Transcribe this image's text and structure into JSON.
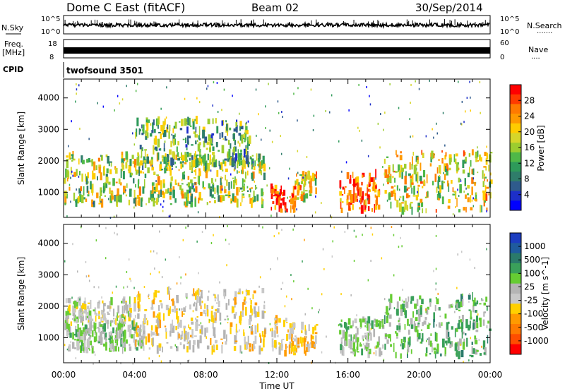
{
  "header": {
    "station": "Dome C East (fitACF)",
    "beam": "Beam 02",
    "date": "30/Sep/2014"
  },
  "top_strips": {
    "nsky_label": "N.Sky",
    "nsky_ticks": [
      "10^5",
      "10^0"
    ],
    "nsky_right_ticks": [
      "10^5",
      "10^0"
    ],
    "nsearch_label": "N.Search",
    "nsearch_dots": "·······",
    "freq_label_1": "Freq.",
    "freq_label_2": "[MHz]",
    "freq_left_ticks": [
      "18",
      "8"
    ],
    "freq_right_ticks": [
      "60",
      "0"
    ],
    "nave_label": "Nave",
    "nave_dots": "····",
    "cpid_label": "CPID",
    "cpid_value": "twofsound 3501"
  },
  "colorbar_power": {
    "label": "Power [dB]",
    "ticks": [
      "28",
      "24",
      "20",
      "16",
      "12",
      "8",
      "4"
    ],
    "colors": [
      "#ff0000",
      "#ff3a00",
      "#ff7a00",
      "#ff9a00",
      "#ffcc00",
      "#d6d62a",
      "#9ccd2f",
      "#4fb848",
      "#2e9a5a",
      "#2f7d6a",
      "#2f5b8c",
      "#1d2fc9",
      "#0000ff"
    ]
  },
  "colorbar_velocity": {
    "label": "Velocity [m s^-1]",
    "ticks": [
      "1000",
      "500",
      "100",
      "25",
      "-25",
      "-100",
      "-500",
      "-1000"
    ],
    "colors": [
      "#1c3dc0",
      "#1f5b9e",
      "#2a7a6a",
      "#3aa05a",
      "#66cc33",
      "#b4b4b4",
      "#c8c8c8",
      "#ffd000",
      "#ff9a00",
      "#ff7a00",
      "#ff4d00",
      "#ff0000"
    ]
  },
  "chart_data": [
    {
      "type": "heatmap",
      "name_ref": "power",
      "xlabel": "",
      "ylabel": "Slant Range [km]",
      "y_ticks": [
        1000,
        2000,
        3000,
        4000
      ],
      "ylim": [
        200,
        4600
      ],
      "xlim_hours": [
        0,
        24
      ],
      "colorbar": "Power [dB]",
      "clim": [
        0,
        30
      ],
      "echo_regions": [
        {
          "t0": 0.0,
          "t1": 11.3,
          "r0": 600,
          "r1": 2200,
          "value": 16
        },
        {
          "t0": 4.0,
          "t1": 10.5,
          "r0": 1800,
          "r1": 3300,
          "value": 12
        },
        {
          "t0": 11.6,
          "t1": 13.0,
          "r0": 400,
          "r1": 1200,
          "value": 26
        },
        {
          "t0": 13.0,
          "t1": 14.2,
          "r0": 800,
          "r1": 1600,
          "value": 18
        },
        {
          "t0": 15.5,
          "t1": 17.8,
          "r0": 400,
          "r1": 1600,
          "value": 26
        },
        {
          "t0": 18.0,
          "t1": 24.0,
          "r0": 400,
          "r1": 2300,
          "value": 18
        }
      ]
    },
    {
      "type": "heatmap",
      "name_ref": "velocity",
      "xlabel": "Time UT",
      "ylabel": "Slant Range [km]",
      "x_ticks": [
        "00:00",
        "04:00",
        "08:00",
        "12:00",
        "16:00",
        "20:00",
        "00:00"
      ],
      "y_ticks": [
        1000,
        2000,
        3000,
        4000
      ],
      "ylim": [
        200,
        4600
      ],
      "xlim_hours": [
        0,
        24
      ],
      "colorbar": "Velocity [m s^-1]",
      "clim": [
        -1000,
        1000
      ],
      "echo_regions": [
        {
          "t0": 0.0,
          "t1": 4.0,
          "r0": 1400,
          "r1": 2200,
          "value": 0
        },
        {
          "t0": 0.0,
          "t1": 4.5,
          "r0": 600,
          "r1": 1400,
          "value": 150
        },
        {
          "t0": 4.0,
          "t1": 11.3,
          "r0": 600,
          "r1": 2500,
          "value": -150
        },
        {
          "t0": 11.6,
          "t1": 14.2,
          "r0": 500,
          "r1": 1600,
          "value": -200
        },
        {
          "t0": 15.5,
          "t1": 18.0,
          "r0": 500,
          "r1": 1600,
          "value": 150
        },
        {
          "t0": 18.0,
          "t1": 24.0,
          "r0": 400,
          "r1": 2300,
          "value": 300
        }
      ]
    }
  ],
  "x_axis_title": "Time UT"
}
